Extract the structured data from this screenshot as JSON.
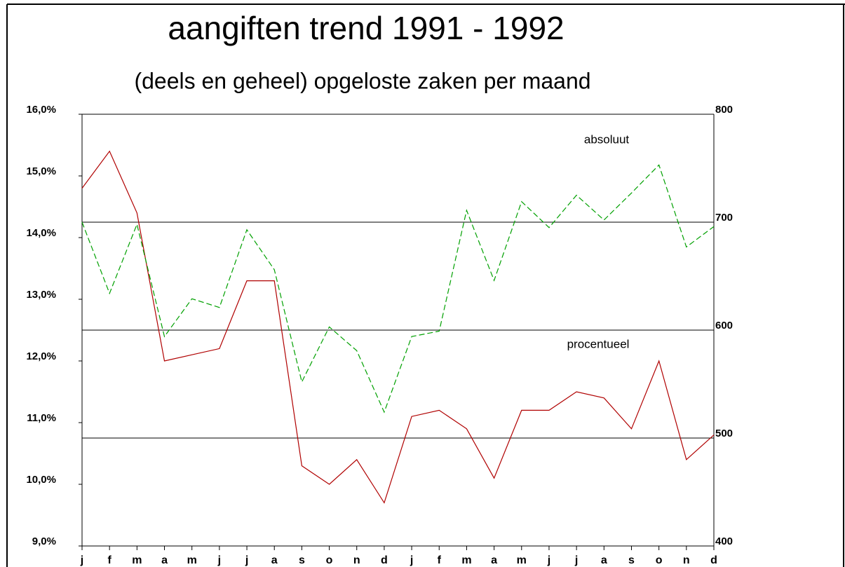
{
  "chart_data": {
    "type": "line",
    "title": "aangiften trend 1991 - 1992",
    "subtitle": "(deels en geheel) opgeloste zaken per maand",
    "categories": [
      "j",
      "f",
      "m",
      "a",
      "m",
      "j",
      "j",
      "a",
      "s",
      "o",
      "n",
      "d",
      "j",
      "f",
      "m",
      "a",
      "m",
      "j",
      "j",
      "a",
      "s",
      "o",
      "n",
      "d"
    ],
    "series": [
      {
        "name": "procentueel",
        "color": "#b00000",
        "dash": false,
        "values": [
          14.8,
          15.4,
          14.4,
          12.0,
          12.1,
          12.2,
          13.3,
          13.3,
          10.3,
          10.0,
          10.4,
          9.7,
          11.1,
          11.2,
          10.9,
          10.1,
          11.2,
          11.2,
          11.5,
          11.4,
          10.9,
          12.0,
          10.4,
          10.8
        ]
      },
      {
        "name": "absoluut",
        "color": "#00a000",
        "dash": true,
        "axis": "y2",
        "values": [
          700,
          634,
          698,
          594,
          629,
          621,
          693,
          656,
          552,
          603,
          581,
          524,
          594,
          599,
          711,
          646,
          719,
          695,
          725,
          702,
          727,
          753,
          677,
          696
        ]
      }
    ],
    "ylim": [
      9,
      16
    ],
    "yticks": [
      {
        "value": 9,
        "label": "9,0%"
      },
      {
        "value": 10,
        "label": "10,0%"
      },
      {
        "value": 11,
        "label": "11,0%"
      },
      {
        "value": 12,
        "label": "12,0%"
      },
      {
        "value": 13,
        "label": "13,0%"
      },
      {
        "value": 14,
        "label": "14,0%"
      },
      {
        "value": 15,
        "label": "15,0%"
      },
      {
        "value": 16,
        "label": "16,0%"
      }
    ],
    "y2lim": [
      400,
      800
    ],
    "y2ticks": [
      400,
      500,
      600,
      700,
      800
    ],
    "grid": "y2"
  }
}
